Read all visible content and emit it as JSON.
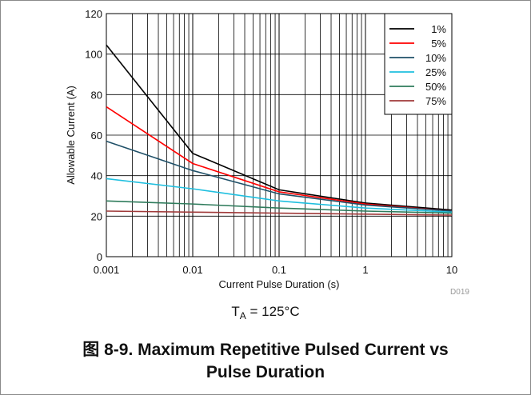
{
  "chart_data": {
    "type": "line",
    "xscale": "log",
    "xlim": [
      0.001,
      10
    ],
    "ylim": [
      0,
      120
    ],
    "grid": true,
    "legend_position": "top-right",
    "xlabel": "Current Pulse Duration (s)",
    "ylabel": "Allowable Current (A)",
    "xticks": [
      "0.001",
      "0.01",
      "0.1",
      "1",
      "10"
    ],
    "yticks": [
      "0",
      "20",
      "40",
      "60",
      "80",
      "100",
      "120"
    ],
    "series": [
      {
        "name": "1%",
        "color": "#000000",
        "x": [
          0.001,
          0.01,
          0.1,
          1,
          10
        ],
        "y": [
          104.5,
          51,
          33,
          26.5,
          23
        ]
      },
      {
        "name": "5%",
        "color": "#ff0000",
        "x": [
          0.001,
          0.01,
          0.1,
          1,
          10
        ],
        "y": [
          74,
          46,
          32,
          26,
          22.5
        ]
      },
      {
        "name": "10%",
        "color": "#1f5068",
        "x": [
          0.001,
          0.01,
          0.1,
          1,
          10
        ],
        "y": [
          57,
          42.5,
          31,
          25.5,
          22.5
        ]
      },
      {
        "name": "25%",
        "color": "#1fbfdf",
        "x": [
          0.001,
          0.01,
          0.1,
          1,
          10
        ],
        "y": [
          38.5,
          33.5,
          27.5,
          24,
          22
        ]
      },
      {
        "name": "50%",
        "color": "#2e7b5b",
        "x": [
          0.001,
          0.01,
          0.1,
          1,
          10
        ],
        "y": [
          27.5,
          26,
          24,
          22.5,
          21.5
        ]
      },
      {
        "name": "75%",
        "color": "#a03a3a",
        "x": [
          0.001,
          0.01,
          0.1,
          1,
          10
        ],
        "y": [
          22.5,
          22,
          21.5,
          21,
          20.5
        ]
      }
    ],
    "annotation": "D019"
  },
  "subtitle": {
    "t": "T",
    "sub": "A",
    "rest": " = 125°C"
  },
  "caption": {
    "line1": "图 8-9. Maximum Repetitive Pulsed Current vs",
    "line2": "Pulse Duration"
  }
}
